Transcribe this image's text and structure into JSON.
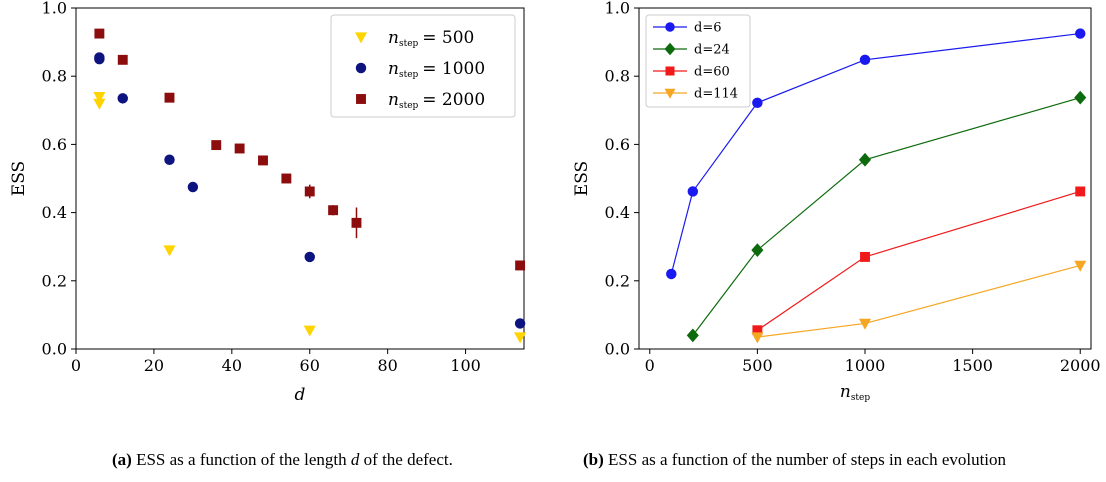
{
  "chart_data": [
    {
      "type": "scatter",
      "xlabel": "d",
      "ylabel": "ESS",
      "xlim": [
        0,
        115
      ],
      "ylim": [
        0,
        1.0
      ],
      "xticks": [
        0,
        20,
        40,
        60,
        80,
        100
      ],
      "yticks": [
        0.0,
        0.2,
        0.4,
        0.6,
        0.8,
        1.0
      ],
      "xtick_labels": [
        "0",
        "20",
        "40",
        "60",
        "80",
        "100"
      ],
      "ytick_labels": [
        "0.0",
        "0.2",
        "0.4",
        "0.6",
        "0.8",
        "1.0"
      ],
      "legend_position": "top-right",
      "series": [
        {
          "name": "n_step = 500",
          "label_sub": "step",
          "label_value": "= 500",
          "color": "#FFD400",
          "marker": "triangle-down",
          "x": [
            6,
            6,
            24,
            60,
            114
          ],
          "y": [
            0.74,
            0.72,
            0.29,
            0.055,
            0.035
          ],
          "err": [
            0,
            0,
            0,
            0,
            0
          ]
        },
        {
          "name": "n_step = 1000",
          "label_sub": "step",
          "label_value": "= 1000",
          "color": "#0D1480",
          "marker": "circle",
          "x": [
            6,
            6,
            12,
            24,
            30,
            60,
            114
          ],
          "y": [
            0.855,
            0.85,
            0.735,
            0.555,
            0.475,
            0.27,
            0.075
          ],
          "err": [
            0.01,
            0.01,
            0,
            0,
            0,
            0,
            0
          ]
        },
        {
          "name": "n_step = 2000",
          "label_sub": "step",
          "label_value": "= 2000",
          "color": "#8B0D0D",
          "marker": "square",
          "x": [
            6,
            12,
            24,
            36,
            42,
            48,
            54,
            60,
            66,
            72,
            114
          ],
          "y": [
            0.925,
            0.848,
            0.737,
            0.598,
            0.588,
            0.553,
            0.5,
            0.462,
            0.407,
            0.37,
            0.245
          ],
          "err": [
            0,
            0,
            0,
            0,
            0,
            0,
            0,
            0.02,
            0.015,
            0.045,
            0
          ]
        }
      ]
    },
    {
      "type": "line",
      "xlabel": "n",
      "xlabel_sub": "step",
      "ylabel": "ESS",
      "xlim": [
        -50,
        2050
      ],
      "ylim": [
        0,
        1.0
      ],
      "xticks": [
        0,
        500,
        1000,
        1500,
        2000
      ],
      "yticks": [
        0.0,
        0.2,
        0.4,
        0.6,
        0.8,
        1.0
      ],
      "xtick_labels": [
        "0",
        "500",
        "1000",
        "1500",
        "2000"
      ],
      "ytick_labels": [
        "0.0",
        "0.2",
        "0.4",
        "0.6",
        "0.8",
        "1.0"
      ],
      "legend_position": "top-left",
      "series": [
        {
          "name": "d=6",
          "color": "#1A1AF0",
          "marker": "circle",
          "x": [
            100,
            200,
            500,
            1000,
            2000
          ],
          "y": [
            0.22,
            0.462,
            0.722,
            0.848,
            0.925
          ]
        },
        {
          "name": "d=24",
          "color": "#0D6B0D",
          "marker": "diamond",
          "x": [
            200,
            500,
            1000,
            2000
          ],
          "y": [
            0.04,
            0.29,
            0.555,
            0.737
          ]
        },
        {
          "name": "d=60",
          "color": "#F01A1A",
          "marker": "square",
          "x": [
            500,
            1000,
            2000
          ],
          "y": [
            0.055,
            0.27,
            0.462
          ]
        },
        {
          "name": "d=114",
          "color": "#F5A623",
          "marker": "triangle-down",
          "x": [
            500,
            1000,
            2000
          ],
          "y": [
            0.035,
            0.075,
            0.245
          ]
        }
      ]
    }
  ],
  "captions": {
    "a_label": "(a)",
    "a_text_1": "ESS as a function of the length",
    "a_var": "d",
    "a_text_2": "of the defect.",
    "b_label": "(b)",
    "b_text": "ESS as a function of the number of steps in each evolution"
  }
}
